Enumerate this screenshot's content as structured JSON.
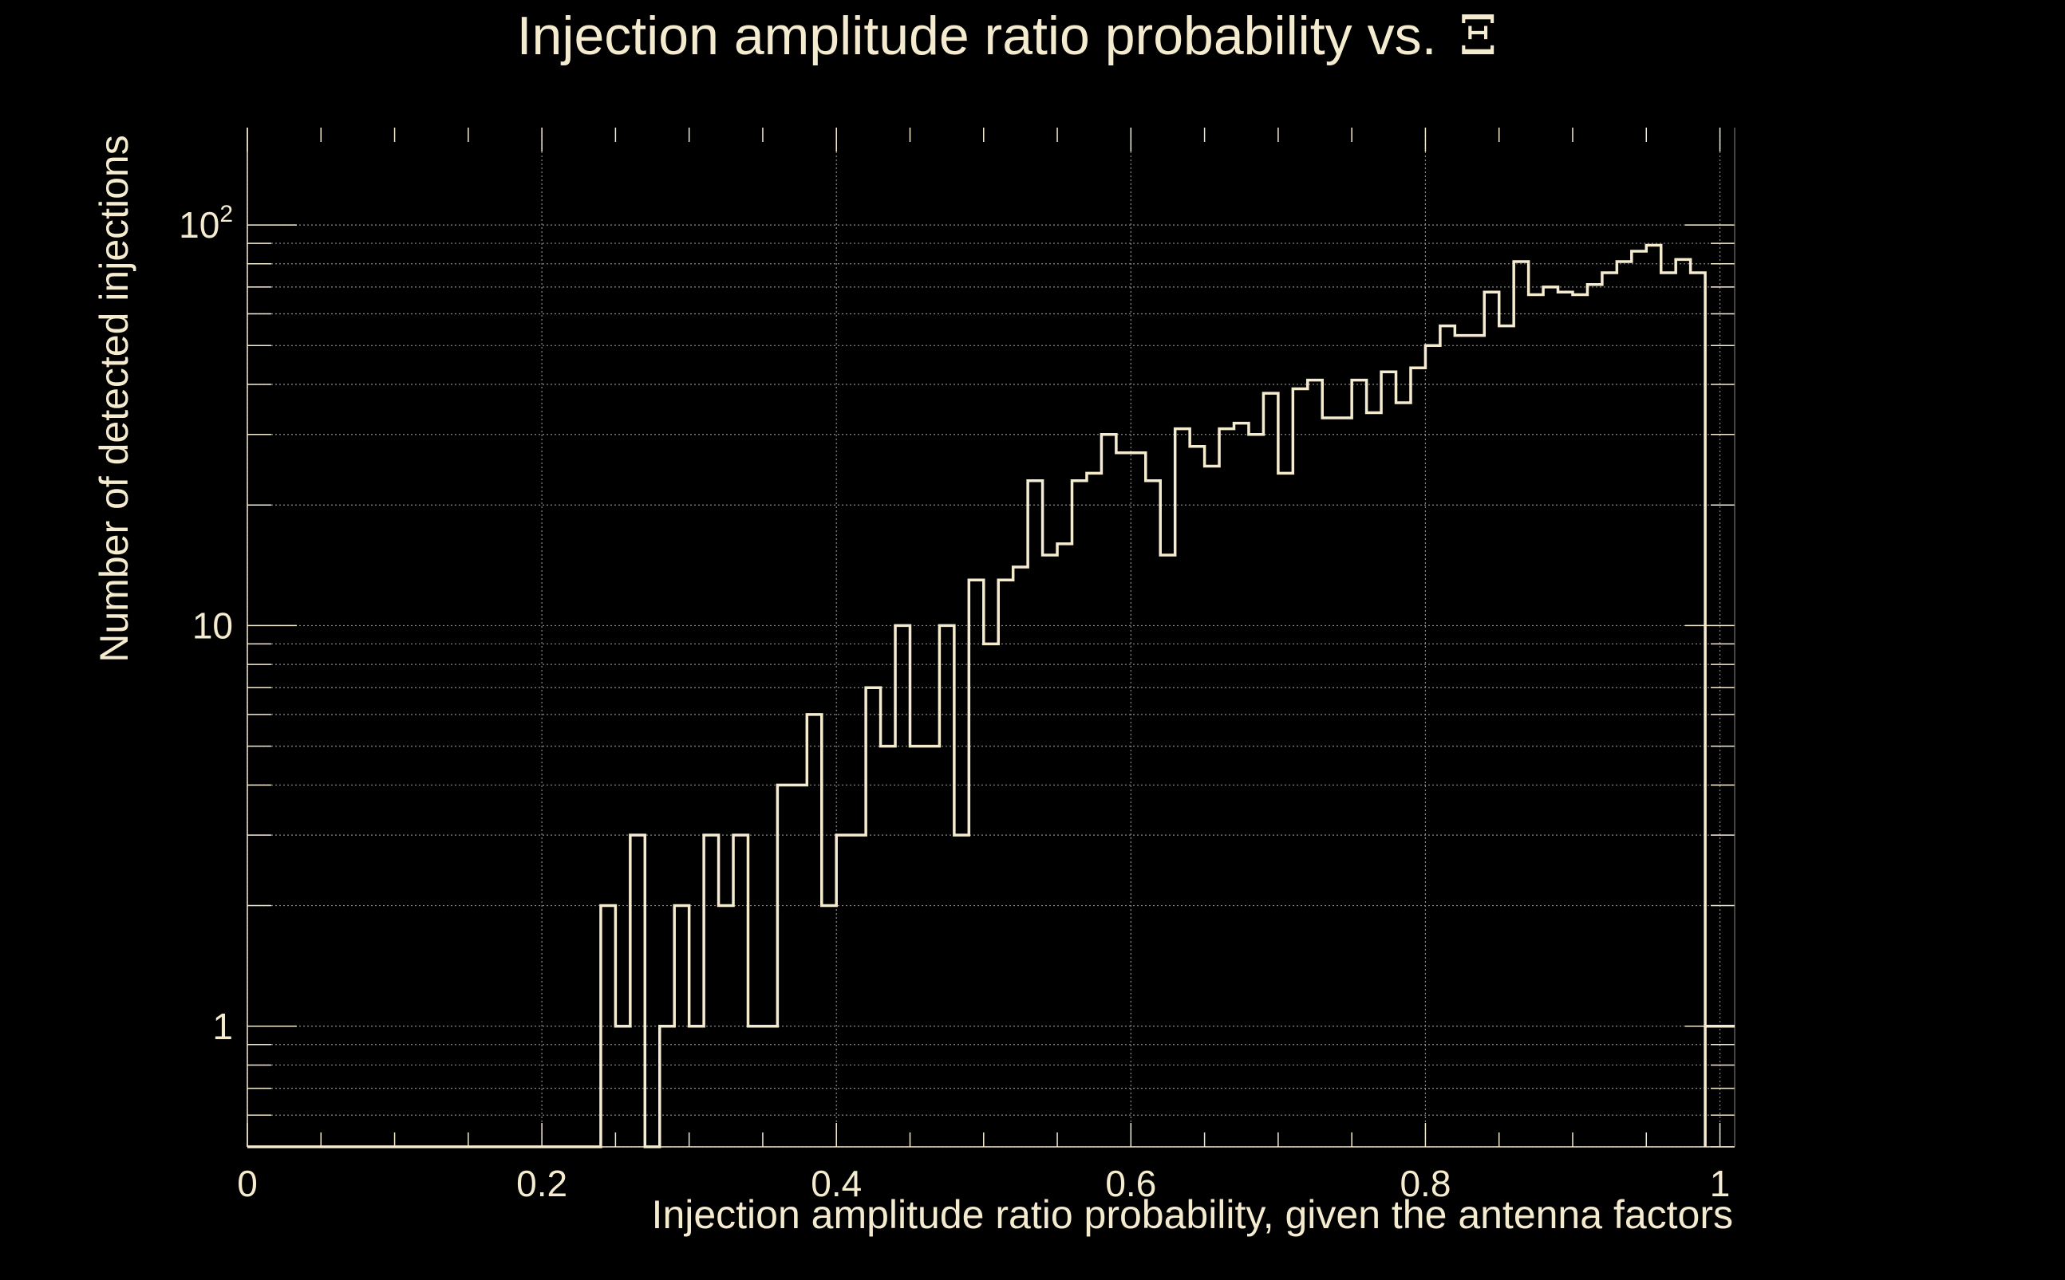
{
  "chart_data": {
    "type": "histogram",
    "title_prefix": "Injection amplitude ratio probability vs.",
    "title_symbol": "Ξ",
    "xlabel": "Injection amplitude ratio probability, given the antenna factors",
    "ylabel": "Number of detected injections",
    "x_scale": "linear",
    "y_scale": "log",
    "xlim": [
      0,
      1.01
    ],
    "ylim": [
      0.5,
      175
    ],
    "grid": true,
    "x_ticks": [
      {
        "value": 0,
        "label": "0"
      },
      {
        "value": 0.2,
        "label": "0.2"
      },
      {
        "value": 0.4,
        "label": "0.4"
      },
      {
        "value": 0.6,
        "label": "0.6"
      },
      {
        "value": 0.8,
        "label": "0.8"
      },
      {
        "value": 1,
        "label": "1"
      }
    ],
    "y_ticks": [
      {
        "value": 1,
        "label": "1"
      },
      {
        "value": 10,
        "label": "10"
      },
      {
        "value": 100,
        "label_base": "10",
        "label_exp": "2"
      }
    ],
    "bin_start": 0.24,
    "bin_width": 0.01,
    "values": [
      2,
      1,
      3,
      0,
      1,
      2,
      1,
      3,
      2,
      3,
      1,
      1,
      4,
      4,
      6,
      2,
      3,
      3,
      7,
      5,
      10,
      5,
      5,
      10,
      3,
      13,
      9,
      13,
      14,
      23,
      15,
      16,
      23,
      24,
      30,
      27,
      27,
      23,
      15,
      31,
      28,
      25,
      31,
      32,
      30,
      38,
      24,
      39,
      41,
      33,
      33,
      41,
      34,
      43,
      36,
      44,
      50,
      56,
      53,
      53,
      68,
      56,
      81,
      67,
      70,
      68,
      67,
      71,
      76,
      81,
      86,
      89,
      76,
      82,
      76
    ],
    "trailing_point": {
      "x": 1.0,
      "value": 1
    },
    "colors": {
      "background": "#000000",
      "foreground": "#f5ecd0",
      "grid": "#8a8a8a"
    }
  }
}
